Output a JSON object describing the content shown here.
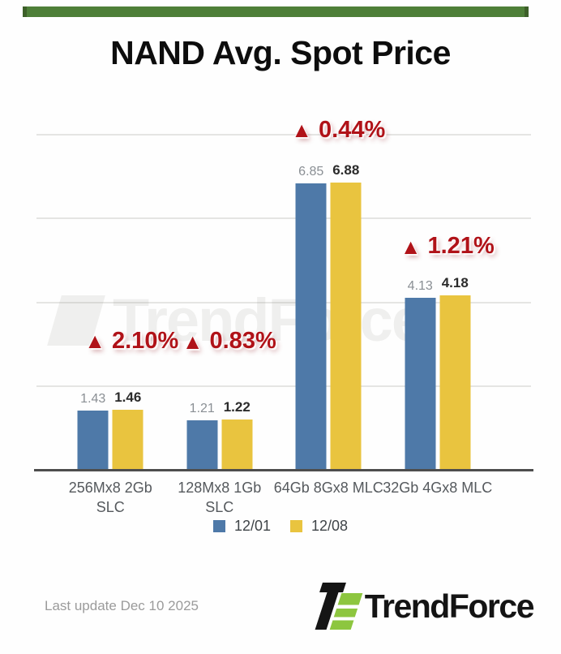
{
  "title": "NAND Avg. Spot Price",
  "chart_data": {
    "type": "bar",
    "title": "NAND Avg. Spot Price",
    "xlabel": "",
    "ylabel": "",
    "categories": [
      "256Mx8 2Gb SLC",
      "128Mx8 1Gb SLC",
      "64Gb 8Gx8 MLC",
      "32Gb 4Gx8 MLC"
    ],
    "categories_lines": [
      [
        "256Mx8 2Gb",
        "SLC"
      ],
      [
        "128Mx8 1Gb",
        "SLC"
      ],
      [
        "64Gb 8Gx8 MLC"
      ],
      [
        "32Gb 4Gx8 MLC"
      ]
    ],
    "series": [
      {
        "name": "12/01",
        "color": "#4e79a8",
        "values": [
          1.43,
          1.21,
          6.85,
          4.13
        ]
      },
      {
        "name": "12/08",
        "color": "#e9c43f",
        "values": [
          1.46,
          1.22,
          6.88,
          4.18
        ]
      }
    ],
    "changes": [
      "2.10%",
      "0.83%",
      "0.44%",
      "1.21%"
    ],
    "up_symbol": "▲",
    "ylim": [
      0,
      8
    ],
    "gridline_values": [
      2,
      4,
      6,
      8
    ],
    "grid": true,
    "legend_position": "bottom"
  },
  "accent_colors": {
    "top_bar_green": "#4e7f38",
    "change_red": "#b01218",
    "logo_green": "#8dc63f"
  },
  "watermark_text": "TrendForce",
  "footer": {
    "last_update": "Last update Dec 10 2025",
    "brand": "TrendForce"
  }
}
